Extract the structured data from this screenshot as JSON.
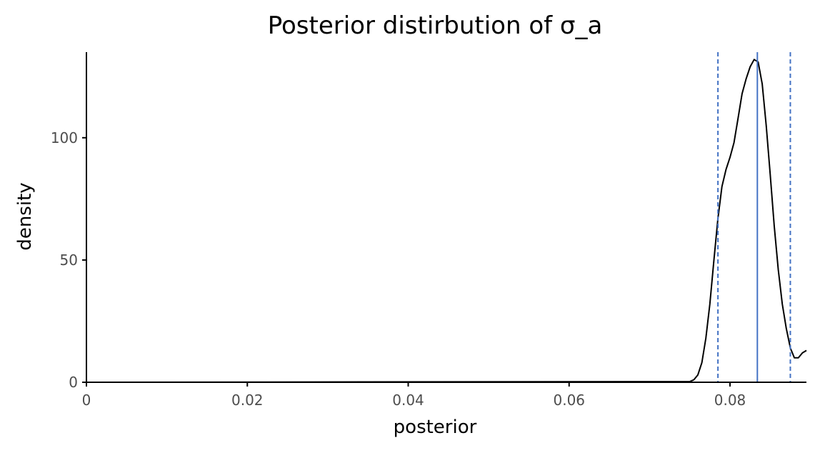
{
  "chart_data": {
    "type": "line",
    "title": "Posterior distirbution of σ_a",
    "xlabel": "posterior",
    "ylabel": "density",
    "xlim": [
      0,
      0.0895
    ],
    "ylim": [
      0,
      135
    ],
    "x_ticks": [
      {
        "value": 0,
        "label": "0"
      },
      {
        "value": 0.02,
        "label": "0.02"
      },
      {
        "value": 0.04,
        "label": "0.04"
      },
      {
        "value": 0.06,
        "label": "0.06"
      },
      {
        "value": 0.08,
        "label": "0.08"
      }
    ],
    "y_ticks": [
      {
        "value": 0,
        "label": "0"
      },
      {
        "value": 50,
        "label": "50"
      },
      {
        "value": 100,
        "label": "100"
      }
    ],
    "grid": false,
    "series": [
      {
        "color": "#000000",
        "x": [
          0,
          0.075,
          0.0755,
          0.076,
          0.0765,
          0.077,
          0.0775,
          0.078,
          0.0785,
          0.079,
          0.0795,
          0.08,
          0.0805,
          0.081,
          0.0815,
          0.082,
          0.0825,
          0.083,
          0.0835,
          0.084,
          0.0845,
          0.085,
          0.0855,
          0.086,
          0.0865,
          0.087,
          0.0875,
          0.088,
          0.0885,
          0.089,
          0.0895
        ],
        "y": [
          0,
          0.3,
          1,
          3,
          8,
          18,
          32,
          50,
          67,
          80,
          87,
          92,
          98,
          108,
          118,
          124,
          129,
          132,
          131,
          122,
          105,
          85,
          64,
          46,
          32,
          22,
          14,
          10,
          10,
          12,
          13
        ]
      }
    ],
    "reference_lines": [
      {
        "name": "mean",
        "x": 0.0834,
        "color": "#4472c4",
        "style": "solid"
      },
      {
        "name": "lower",
        "x": 0.0785,
        "color": "#4472c4",
        "style": "dashed"
      },
      {
        "name": "upper",
        "x": 0.0875,
        "color": "#4472c4",
        "style": "dashed"
      }
    ]
  }
}
